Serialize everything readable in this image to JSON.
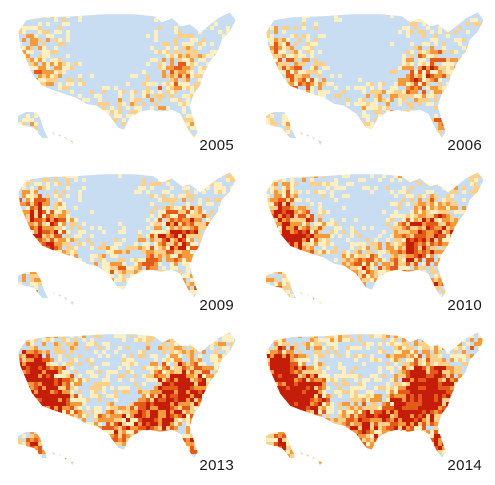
{
  "colors": {
    "low": "#c8ddf2",
    "pale": "#fdefbf",
    "light": "#fcd08a",
    "mid": "#f59a3c",
    "high": "#e45a1a",
    "highest": "#c41e0a"
  },
  "panels": [
    {
      "year": "2005",
      "intensity": 0.1
    },
    {
      "year": "2006",
      "intensity": 0.22
    },
    {
      "year": "2009",
      "intensity": 0.42
    },
    {
      "year": "2010",
      "intensity": 0.55
    },
    {
      "year": "2013",
      "intensity": 0.78
    },
    {
      "year": "2014",
      "intensity": 0.92
    }
  ]
}
